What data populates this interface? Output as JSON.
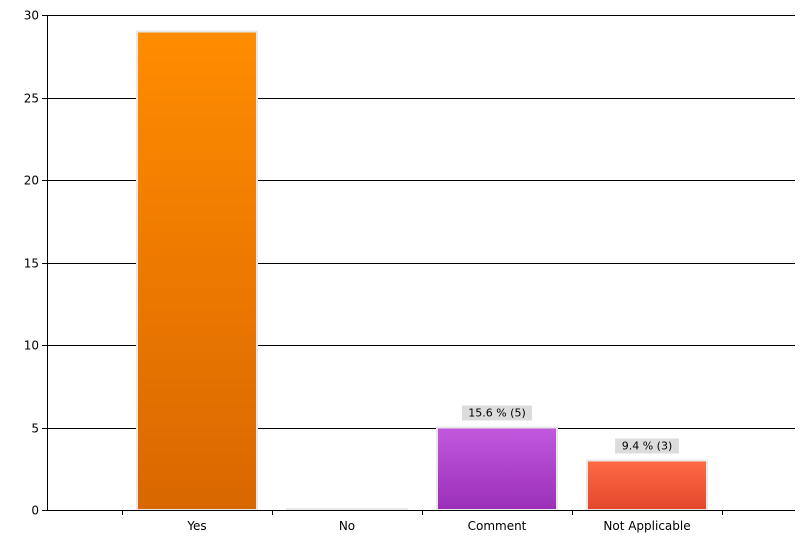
{
  "chart_data": {
    "type": "bar",
    "categories": [
      "Yes",
      "No",
      "Comment",
      "Not Applicable"
    ],
    "values": [
      29,
      0,
      5,
      3
    ],
    "data_labels": [
      "",
      "",
      "15.6 % (5)",
      "9.4 % (3)"
    ],
    "bar_colors": [
      [
        "#FF8C00",
        "#D96700"
      ],
      [
        "#FF8C00",
        "#D96700"
      ],
      [
        "#C158DD",
        "#9B30B8"
      ],
      [
        "#FF6A46",
        "#E2472A"
      ]
    ],
    "ylim": [
      0,
      30
    ],
    "yticks": [
      0,
      5,
      10,
      15,
      20,
      25,
      30
    ],
    "grid": true,
    "legend": "none"
  }
}
